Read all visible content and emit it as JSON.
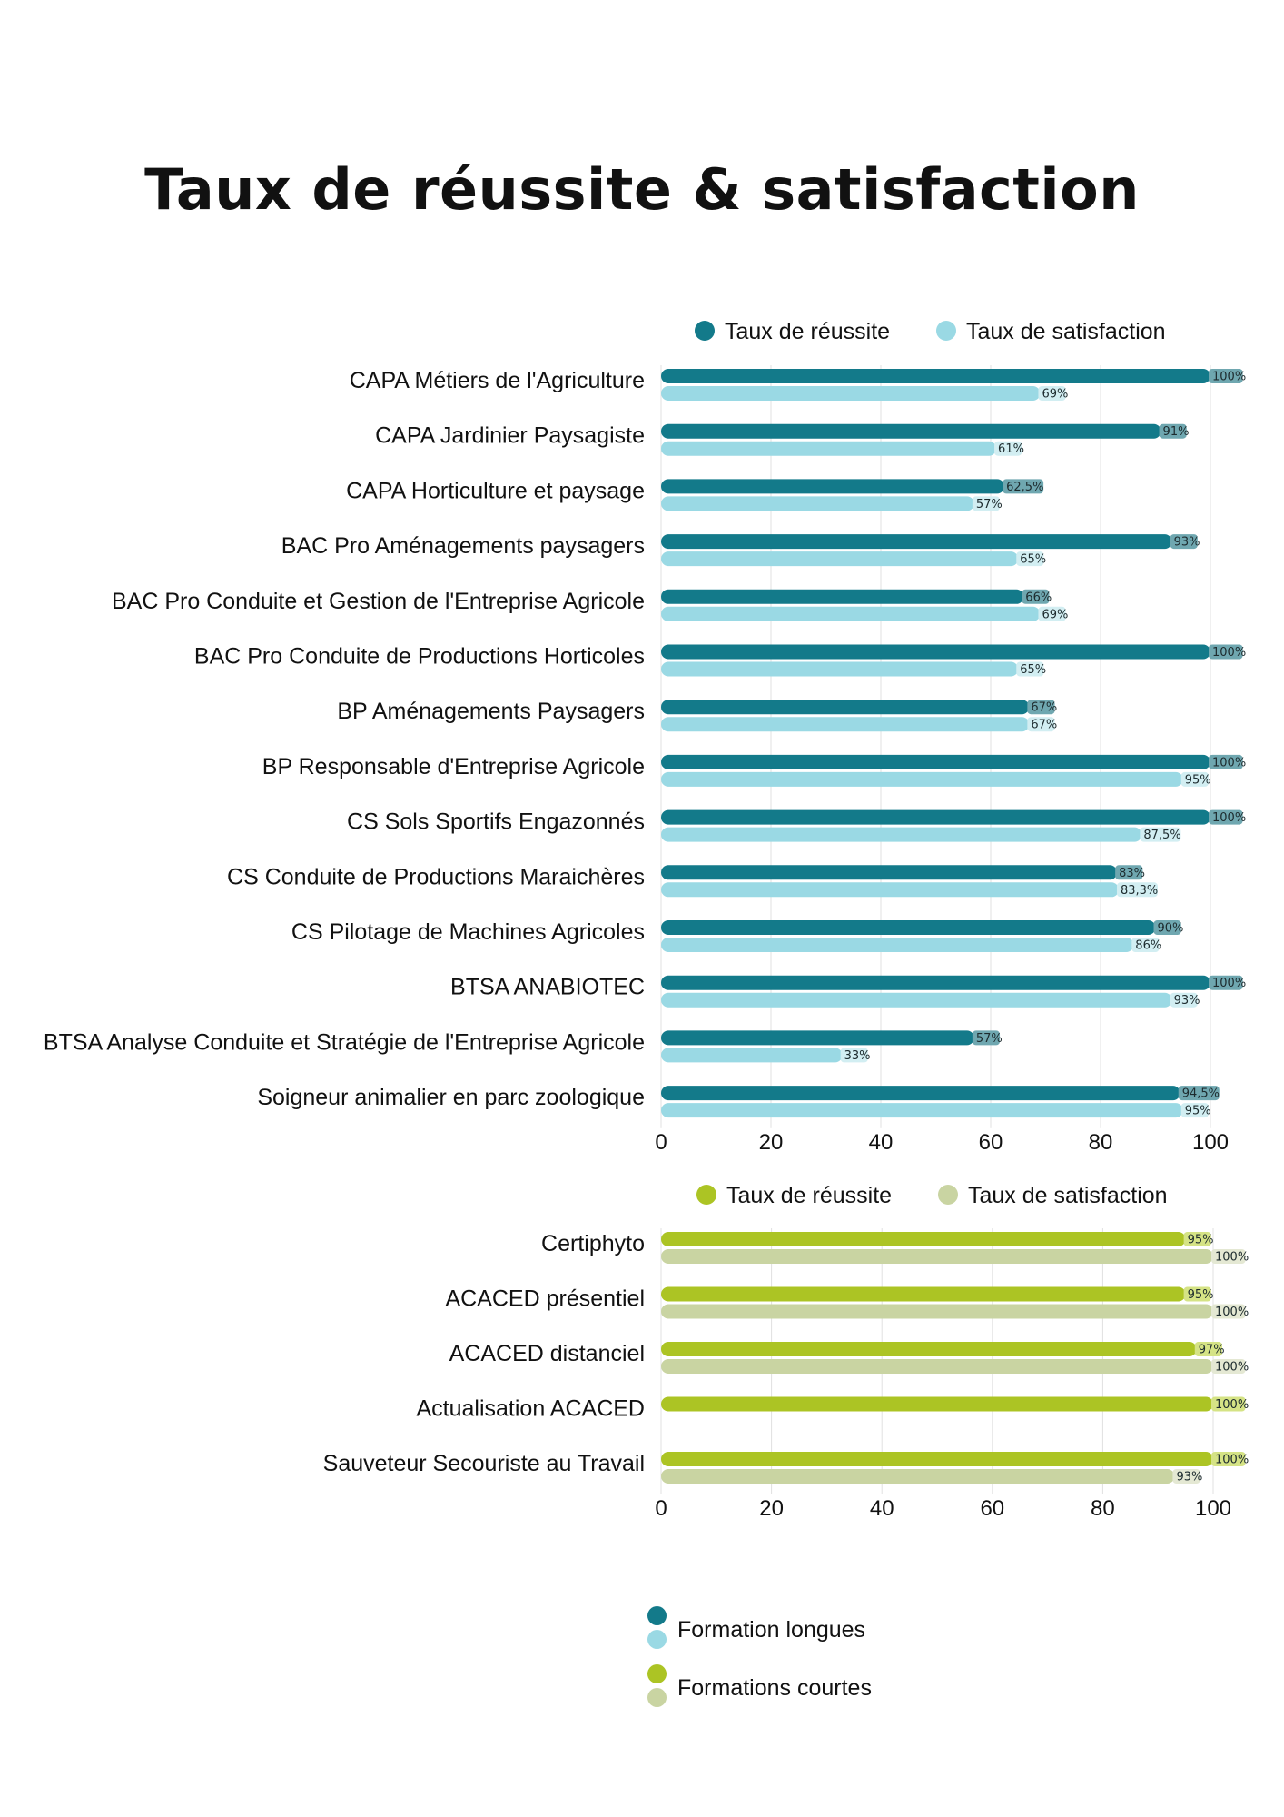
{
  "title": "Taux de réussite & satisfaction",
  "colors": {
    "long_reussite": "#137a8a",
    "long_satisfaction": "#9ad9e4",
    "long_reussite_tag": "#6fa7b0",
    "long_satisfaction_tag": "#d2eef2",
    "short_reussite": "#acc424",
    "short_satisfaction": "#c9d4a2",
    "short_reussite_tag": "#d5e385",
    "short_satisfaction_tag": "#e4e8d3",
    "grid": "#e0e0e0"
  },
  "chart_data": [
    {
      "type": "bar",
      "orientation": "horizontal",
      "legend": [
        "Taux de réussite",
        "Taux de satisfaction"
      ],
      "categories": [
        "CAPA Métiers de l'Agriculture",
        "CAPA Jardinier Paysagiste",
        "CAPA Horticulture et paysage",
        "BAC Pro Aménagements paysagers",
        "BAC Pro Conduite et Gestion de l'Entreprise Agricole",
        "BAC Pro Conduite de Productions Horticoles",
        "BP Aménagements Paysagers",
        "BP Responsable d'Entreprise Agricole",
        "CS Sols Sportifs Engazonnés",
        "CS Conduite de Productions Maraichères",
        "CS Pilotage de Machines Agricoles",
        "BTSA ANABIOTEC",
        "BTSA Analyse Conduite et Stratégie de l'Entreprise Agricole",
        "Soigneur animalier en parc zoologique"
      ],
      "series": [
        {
          "name": "Taux de réussite",
          "values": [
            100,
            91,
            62.5,
            93,
            66,
            100,
            67,
            100,
            100,
            83,
            90,
            100,
            57,
            94.5
          ],
          "labels": [
            "100%",
            "91%",
            "62,5%",
            "93%",
            "66%",
            "100%",
            "67%",
            "100%",
            "100%",
            "83%",
            "90%",
            "100%",
            "57%",
            "94,5%"
          ]
        },
        {
          "name": "Taux de satisfaction",
          "values": [
            69,
            61,
            57,
            65,
            69,
            65,
            67,
            95,
            87.5,
            83.3,
            86,
            93,
            33,
            95
          ],
          "labels": [
            "69%",
            "61%",
            "57%",
            "65%",
            "69%",
            "65%",
            "67%",
            "95%",
            "87,5%",
            "83,3%",
            "86%",
            "93%",
            "33%",
            "95%"
          ]
        }
      ],
      "xlim": [
        0,
        100
      ],
      "ticks": [
        "0",
        "20",
        "40",
        "60",
        "80",
        "100"
      ],
      "grid": true,
      "legend_position": "top"
    },
    {
      "type": "bar",
      "orientation": "horizontal",
      "legend": [
        "Taux de réussite",
        "Taux de satisfaction"
      ],
      "categories": [
        "Certiphyto",
        "ACACED présentiel",
        "ACACED distanciel",
        "Actualisation ACACED",
        "Sauveteur Secouriste au Travail"
      ],
      "series": [
        {
          "name": "Taux de réussite",
          "values": [
            95,
            95,
            97,
            100,
            100
          ],
          "labels": [
            "95%",
            "95%",
            "97%",
            "100%",
            "100%"
          ]
        },
        {
          "name": "Taux de satisfaction",
          "values": [
            100,
            100,
            100,
            null,
            93
          ],
          "labels": [
            "100%",
            "100%",
            "100%",
            null,
            "93%"
          ]
        }
      ],
      "xlim": [
        0,
        100
      ],
      "ticks": [
        "0",
        "20",
        "40",
        "60",
        "80",
        "100"
      ],
      "grid": true,
      "legend_position": "top"
    }
  ],
  "footer_legend": [
    {
      "label": "Formation longues"
    },
    {
      "label": "Formations courtes"
    }
  ]
}
